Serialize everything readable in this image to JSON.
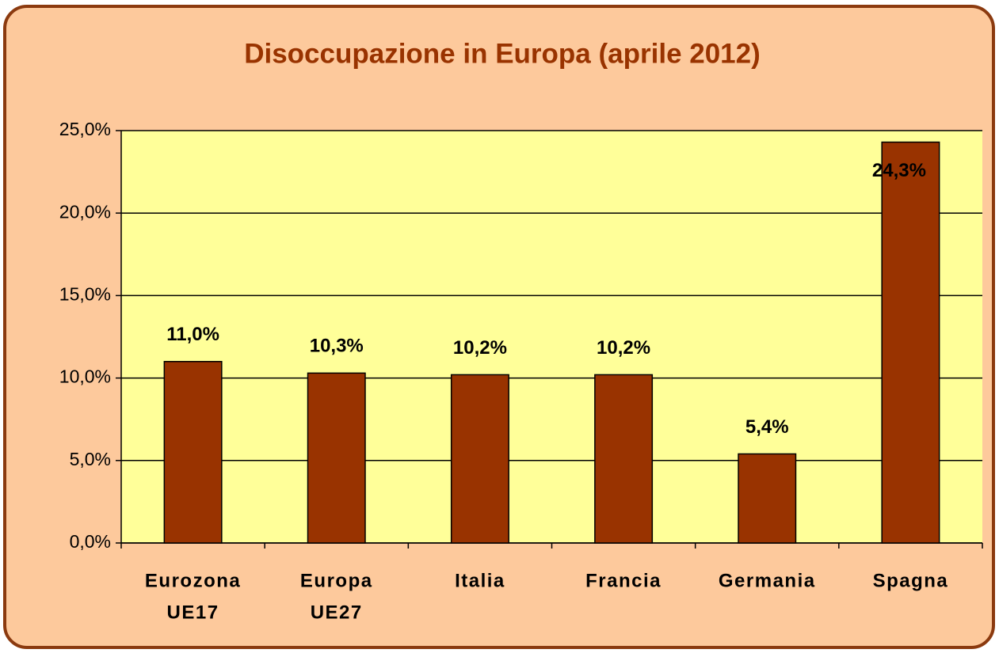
{
  "chart_data": {
    "type": "bar",
    "title": "Disoccupazione in Europa (aprile 2012)",
    "categories": [
      [
        "Eurozona",
        "UE17"
      ],
      [
        "Europa",
        "UE27"
      ],
      [
        "Italia"
      ],
      [
        "Francia"
      ],
      [
        "Germania"
      ],
      [
        "Spagna"
      ]
    ],
    "values": [
      11.0,
      10.3,
      10.2,
      10.2,
      5.4,
      24.3
    ],
    "value_labels": [
      "11,0%",
      "10,3%",
      "10,2%",
      "10,2%",
      "5,4%",
      "24,3%"
    ],
    "color": "#993300",
    "ylim": [
      0,
      25
    ],
    "yticks": [
      {
        "value": 0,
        "label": "0,0%"
      },
      {
        "value": 5,
        "label": "5,0%"
      },
      {
        "value": 10,
        "label": "10,0%"
      },
      {
        "value": 15,
        "label": "15,0%"
      },
      {
        "value": 20,
        "label": "20,0%"
      },
      {
        "value": 25,
        "label": "25,0%"
      }
    ],
    "grid": true
  }
}
